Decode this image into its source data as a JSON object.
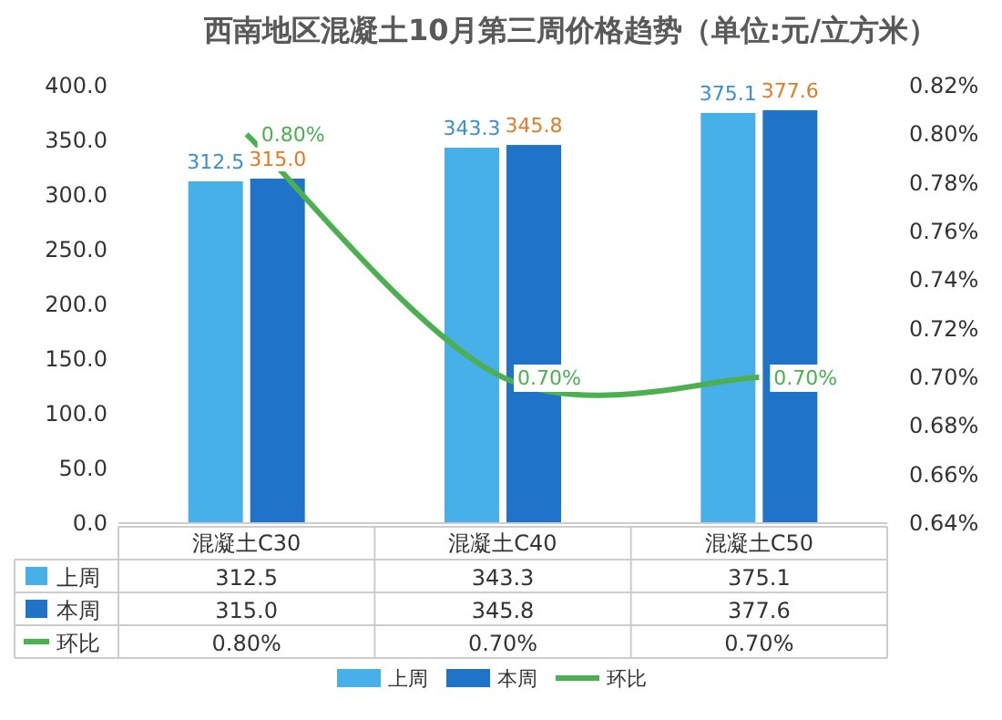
{
  "chart_data": {
    "type": "bar",
    "title": "西南地区混凝土10月第三周价格趋势（单位:元/立方米）",
    "categories": [
      "混凝土C30",
      "混凝土C40",
      "混凝土C50"
    ],
    "series": [
      {
        "name": "上周",
        "color": "#48b0e8",
        "values": [
          312.5,
          343.3,
          375.1
        ],
        "value_labels": [
          "312.5",
          "343.3",
          "375.1"
        ]
      },
      {
        "name": "本周",
        "color": "#1f74c9",
        "values": [
          315.0,
          345.8,
          377.6
        ],
        "value_labels": [
          "315.0",
          "345.8",
          "377.6"
        ]
      },
      {
        "name": "环比",
        "type": "line",
        "axis": "y2",
        "color": "#4caf50",
        "values": [
          0.8,
          0.7,
          0.7
        ],
        "value_labels": [
          "0.80%",
          "0.70%",
          "0.70%"
        ]
      }
    ],
    "ylim": [
      0,
      400
    ],
    "yticks": [
      {
        "value": 0,
        "label": "0.0"
      },
      {
        "value": 50,
        "label": "50.0"
      },
      {
        "value": 100,
        "label": "100.0"
      },
      {
        "value": 150,
        "label": "150.0"
      },
      {
        "value": 200,
        "label": "200.0"
      },
      {
        "value": 250,
        "label": "250.0"
      },
      {
        "value": 300,
        "label": "300.0"
      },
      {
        "value": 350,
        "label": "350.0"
      },
      {
        "value": 400,
        "label": "400.0"
      }
    ],
    "y2lim": [
      0.64,
      0.82
    ],
    "y2ticks": [
      {
        "value": 0.64,
        "label": "0.64%"
      },
      {
        "value": 0.66,
        "label": "0.66%"
      },
      {
        "value": 0.68,
        "label": "0.68%"
      },
      {
        "value": 0.7,
        "label": "0.70%"
      },
      {
        "value": 0.72,
        "label": "0.72%"
      },
      {
        "value": 0.74,
        "label": "0.74%"
      },
      {
        "value": 0.76,
        "label": "0.76%"
      },
      {
        "value": 0.78,
        "label": "0.78%"
      },
      {
        "value": 0.8,
        "label": "0.80%"
      },
      {
        "value": 0.82,
        "label": "0.82%"
      }
    ],
    "data_labels": true,
    "grid": false,
    "legend": "bottom"
  }
}
